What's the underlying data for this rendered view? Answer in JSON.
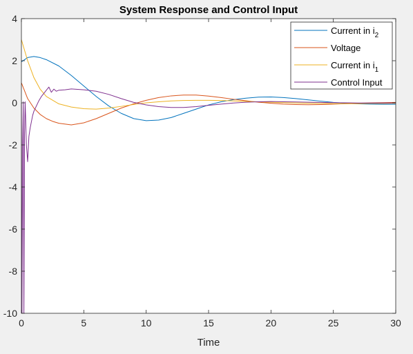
{
  "chart_data": {
    "type": "line",
    "title": "System Response and Control Input",
    "xlabel": "Time",
    "ylabel": "",
    "xlim": [
      0,
      30
    ],
    "ylim": [
      -10,
      4
    ],
    "x_ticks": [
      "0",
      "5",
      "10",
      "15",
      "20",
      "25",
      "30"
    ],
    "y_ticks": [
      "4",
      "2",
      "0",
      "-2",
      "-4",
      "-6",
      "-8",
      "-10"
    ],
    "grid": false,
    "legend_position": "top-right",
    "series": [
      {
        "name": "Current in i",
        "name_sub": "2",
        "color": "#0072BD",
        "x": [
          0,
          0.5,
          1,
          1.5,
          2,
          3,
          4,
          5,
          6,
          7,
          8,
          9,
          10,
          11,
          12,
          13,
          14,
          15,
          16,
          17,
          18,
          19,
          20,
          21,
          22,
          23,
          24,
          25,
          26,
          27,
          28,
          29,
          30
        ],
        "y": [
          1.95,
          2.15,
          2.2,
          2.15,
          2.05,
          1.75,
          1.3,
          0.8,
          0.3,
          -0.15,
          -0.5,
          -0.75,
          -0.85,
          -0.82,
          -0.7,
          -0.5,
          -0.3,
          -0.1,
          0.05,
          0.15,
          0.22,
          0.27,
          0.28,
          0.25,
          0.2,
          0.14,
          0.08,
          0.02,
          -0.02,
          -0.05,
          -0.06,
          -0.07,
          -0.07
        ]
      },
      {
        "name": "Voltage",
        "name_sub": "",
        "color": "#D95319",
        "x": [
          0,
          0.5,
          1,
          1.5,
          2,
          2.5,
          3,
          4,
          5,
          6,
          7,
          8,
          9,
          10,
          11,
          12,
          13,
          14,
          15,
          16,
          17,
          18,
          19,
          20,
          21,
          22,
          23,
          24,
          25,
          26,
          27,
          28,
          29,
          30
        ],
        "y": [
          0.95,
          0.2,
          -0.25,
          -0.55,
          -0.75,
          -0.88,
          -0.97,
          -1.05,
          -0.95,
          -0.75,
          -0.5,
          -0.25,
          -0.05,
          0.12,
          0.25,
          0.33,
          0.37,
          0.37,
          0.32,
          0.25,
          0.17,
          0.1,
          0.03,
          -0.02,
          -0.06,
          -0.08,
          -0.09,
          -0.08,
          -0.06,
          -0.04,
          -0.02,
          0.0,
          0.01,
          0.02
        ]
      },
      {
        "name": "Current in i",
        "name_sub": "1",
        "color": "#EDB120",
        "x": [
          0,
          0.5,
          1,
          1.5,
          2,
          3,
          4,
          5,
          6,
          7,
          8,
          9,
          10,
          11,
          12,
          13,
          14,
          15,
          16,
          17,
          18,
          19,
          20,
          21,
          22,
          23,
          24,
          25,
          26,
          27,
          28,
          29,
          30
        ],
        "y": [
          3.0,
          2.0,
          1.2,
          0.65,
          0.3,
          -0.05,
          -0.2,
          -0.28,
          -0.3,
          -0.25,
          -0.17,
          -0.08,
          0.0,
          0.05,
          0.09,
          0.11,
          0.12,
          0.12,
          0.11,
          0.09,
          0.07,
          0.05,
          0.03,
          0.01,
          -0.01,
          -0.02,
          -0.03,
          -0.04,
          -0.04,
          -0.04,
          -0.03,
          -0.03,
          -0.02
        ]
      },
      {
        "name": "Control Input",
        "name_sub": "",
        "color": "#7E2F8E",
        "x": [
          0,
          0.05,
          0.1,
          0.15,
          0.2,
          0.25,
          0.3,
          0.4,
          0.5,
          0.6,
          0.7,
          0.8,
          0.9,
          1.0,
          1.2,
          1.4,
          1.6,
          1.8,
          2.0,
          2.2,
          2.4,
          2.6,
          2.8,
          3.0,
          3.5,
          4.0,
          4.5,
          5.0,
          6,
          7,
          8,
          9,
          10,
          11,
          12,
          13,
          14,
          15,
          16,
          17,
          18,
          19,
          20,
          21,
          22,
          23,
          24,
          25,
          26,
          27,
          28,
          29,
          30
        ],
        "y": [
          0,
          -10,
          -2,
          0.05,
          -10,
          -1.5,
          0.05,
          -2.0,
          -2.8,
          -1.6,
          -1.2,
          -0.9,
          -0.6,
          -0.4,
          -0.15,
          0.1,
          0.3,
          0.45,
          0.6,
          0.75,
          0.5,
          0.65,
          0.55,
          0.6,
          0.62,
          0.66,
          0.64,
          0.62,
          0.55,
          0.4,
          0.2,
          0.02,
          -0.1,
          -0.18,
          -0.22,
          -0.22,
          -0.18,
          -0.12,
          -0.06,
          -0.01,
          0.03,
          0.05,
          0.06,
          0.05,
          0.04,
          0.03,
          0.02,
          0.01,
          0.0,
          -0.01,
          -0.01,
          -0.01,
          -0.01
        ]
      }
    ]
  }
}
